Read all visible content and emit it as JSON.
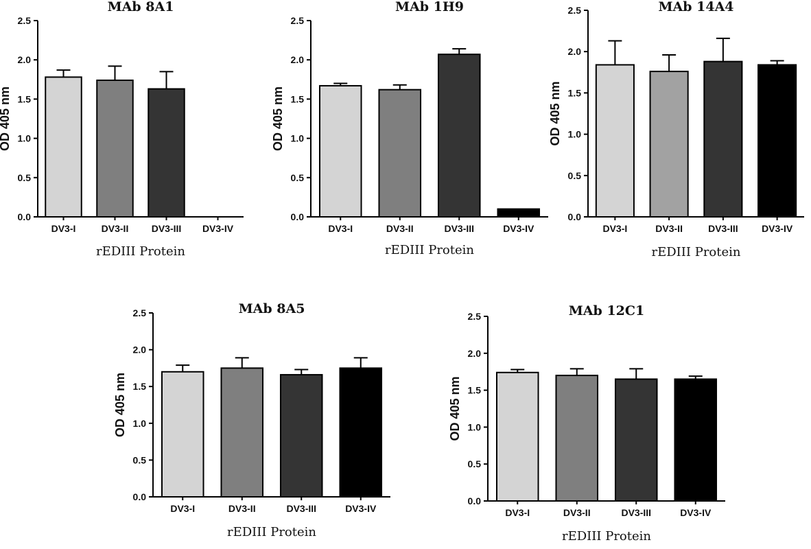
{
  "colors": {
    "DV3-I": "#d4d4d4",
    "DV3-II": "#7f7f7f",
    "DV3-III": "#343434",
    "DV3-IV": "#000000",
    "DV3-II-alt": "#a2a2a2"
  },
  "chart_data": [
    {
      "type": "bar",
      "title": "MAb 8A1",
      "xlabel": "rEDIII Protein",
      "ylabel": "OD 405 nm",
      "ylim": [
        0,
        2.5
      ],
      "yticks": [
        "0.0",
        "0.5",
        "1.0",
        "1.5",
        "2.0",
        "2.5"
      ],
      "categories": [
        "DV3-I",
        "DV3-II",
        "DV3-III",
        "DV3-IV"
      ],
      "values": [
        1.78,
        1.74,
        1.63,
        0
      ],
      "errors": [
        0.09,
        0.18,
        0.22,
        0
      ],
      "grid": false,
      "legend": "none"
    },
    {
      "type": "bar",
      "title": "MAb 1H9",
      "xlabel": "rEDIII Protein",
      "ylabel": "OD 405 nm",
      "ylim": [
        0,
        2.5
      ],
      "yticks": [
        "0.0",
        "0.5",
        "1.0",
        "1.5",
        "2.0",
        "2.5"
      ],
      "categories": [
        "DV3-I",
        "DV3-II",
        "DV3-III",
        "DV3-IV"
      ],
      "values": [
        1.67,
        1.62,
        2.07,
        0.1
      ],
      "errors": [
        0.03,
        0.06,
        0.07,
        0
      ],
      "grid": false,
      "legend": "none"
    },
    {
      "type": "bar",
      "title": "MAb 14A4",
      "xlabel": "rEDIII Protein",
      "ylabel": "OD 405 nm",
      "ylim": [
        0,
        2.5
      ],
      "yticks": [
        "0.0",
        "0.5",
        "1.0",
        "1.5",
        "2.0",
        "2.5"
      ],
      "categories": [
        "DV3-I",
        "DV3-II",
        "DV3-III",
        "DV3-IV"
      ],
      "values": [
        1.84,
        1.76,
        1.88,
        1.84
      ],
      "errors": [
        0.29,
        0.2,
        0.28,
        0.05
      ],
      "grid": false,
      "legend": "none"
    },
    {
      "type": "bar",
      "title": "MAb 8A5",
      "xlabel": "rEDIII Protein",
      "ylabel": "OD 405 nm",
      "ylim": [
        0,
        2.5
      ],
      "yticks": [
        "0.0",
        "0.5",
        "1.0",
        "1.5",
        "2.0",
        "2.5"
      ],
      "categories": [
        "DV3-I",
        "DV3-II",
        "DV3-III",
        "DV3-IV"
      ],
      "values": [
        1.7,
        1.75,
        1.66,
        1.75
      ],
      "errors": [
        0.09,
        0.14,
        0.07,
        0.14
      ],
      "grid": false,
      "legend": "none"
    },
    {
      "type": "bar",
      "title": "MAb 12C1",
      "xlabel": "rEDIII Protein",
      "ylabel": "OD 405 nm",
      "ylim": [
        0,
        2.5
      ],
      "yticks": [
        "0.0",
        "0.5",
        "1.0",
        "1.5",
        "2.0",
        "2.5"
      ],
      "categories": [
        "DV3-I",
        "DV3-II",
        "DV3-III",
        "DV3-IV"
      ],
      "values": [
        1.74,
        1.7,
        1.65,
        1.65
      ],
      "errors": [
        0.04,
        0.09,
        0.14,
        0.04
      ],
      "grid": false,
      "legend": "none"
    }
  ]
}
